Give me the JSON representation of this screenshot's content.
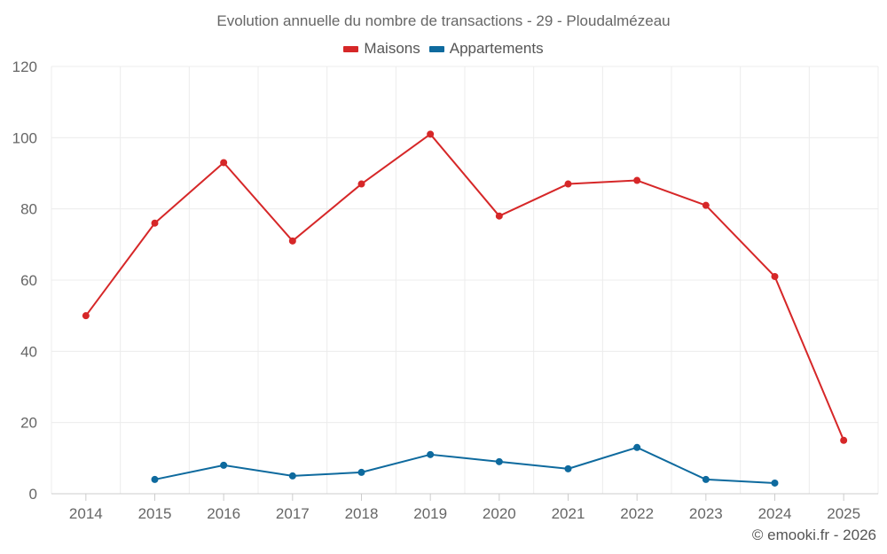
{
  "chart_data": {
    "type": "line",
    "title": "Evolution annuelle du nombre de transactions - 29 - Ploudalmézeau",
    "categories": [
      "2014",
      "2015",
      "2016",
      "2017",
      "2018",
      "2019",
      "2020",
      "2021",
      "2022",
      "2023",
      "2024",
      "2025"
    ],
    "xlabel": "",
    "ylabel": "",
    "ylim": [
      0,
      120
    ],
    "yticks": [
      "0",
      "20",
      "40",
      "60",
      "80",
      "100",
      "120"
    ],
    "grid": true,
    "legend_position": "top-center",
    "series": [
      {
        "name": "Maisons",
        "color": "#d62728",
        "values": [
          50,
          76,
          93,
          71,
          87,
          101,
          78,
          87,
          88,
          81,
          61,
          15
        ]
      },
      {
        "name": "Appartements",
        "color": "#0e6a9e",
        "values": [
          null,
          4,
          8,
          5,
          6,
          11,
          9,
          7,
          13,
          4,
          3,
          null
        ]
      }
    ]
  },
  "credit": "© emooki.fr - 2026"
}
